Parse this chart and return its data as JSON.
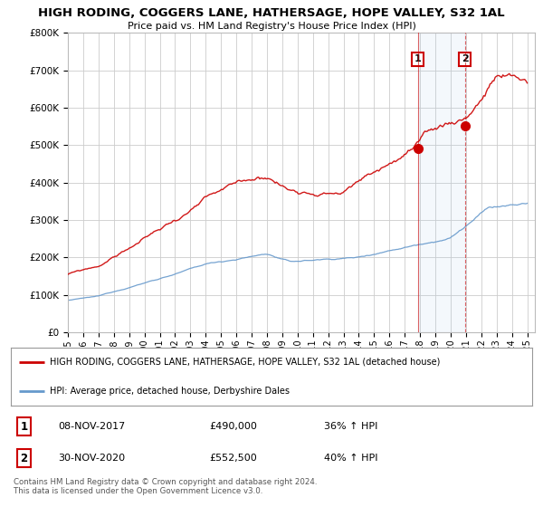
{
  "title": "HIGH RODING, COGGERS LANE, HATHERSAGE, HOPE VALLEY, S32 1AL",
  "subtitle": "Price paid vs. HM Land Registry's House Price Index (HPI)",
  "ylabel_ticks": [
    "£0",
    "£100K",
    "£200K",
    "£300K",
    "£400K",
    "£500K",
    "£600K",
    "£700K",
    "£800K"
  ],
  "ytick_values": [
    0,
    100000,
    200000,
    300000,
    400000,
    500000,
    600000,
    700000,
    800000
  ],
  "ylim": [
    0,
    800000
  ],
  "xlim_start": 1995,
  "xlim_end": 2025.5,
  "x_ticks": [
    1995,
    1996,
    1997,
    1998,
    1999,
    2000,
    2001,
    2002,
    2003,
    2004,
    2005,
    2006,
    2007,
    2008,
    2009,
    2010,
    2011,
    2012,
    2013,
    2014,
    2015,
    2016,
    2017,
    2018,
    2019,
    2020,
    2021,
    2022,
    2023,
    2024,
    2025
  ],
  "sale1_x": 2017.86,
  "sale1_y": 490000,
  "sale2_x": 2020.92,
  "sale2_y": 552500,
  "sale1_label": "1",
  "sale2_label": "2",
  "line1_color": "#cc0000",
  "line2_color": "#6699cc",
  "background_color": "#ffffff",
  "plot_bg_color": "#ffffff",
  "grid_color": "#cccccc",
  "legend1_text": "HIGH RODING, COGGERS LANE, HATHERSAGE, HOPE VALLEY, S32 1AL (detached house)",
  "legend2_text": "HPI: Average price, detached house, Derbyshire Dales",
  "table_row1": [
    "1",
    "08-NOV-2017",
    "£490,000",
    "36% ↑ HPI"
  ],
  "table_row2": [
    "2",
    "30-NOV-2020",
    "£552,500",
    "40% ↑ HPI"
  ],
  "footer": "Contains HM Land Registry data © Crown copyright and database right 2024.\nThis data is licensed under the Open Government Licence v3.0."
}
